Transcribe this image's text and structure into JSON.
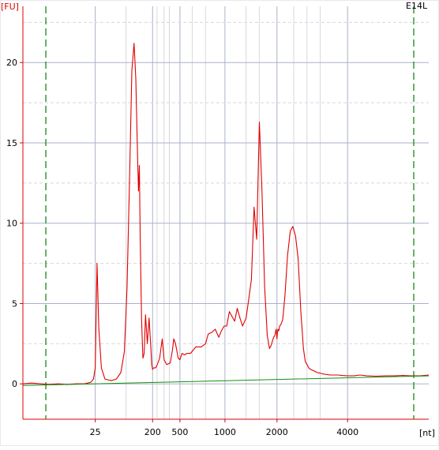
{
  "chart_data": {
    "type": "line",
    "sample_label": "E14L",
    "ylabel": "[FU]",
    "xlabel": "[nt]",
    "y_ticks": [
      0,
      5,
      10,
      15,
      20
    ],
    "x_tick_labels": [
      "25",
      "200",
      "500",
      "1000",
      "2000",
      "4000"
    ],
    "ylim": [
      -2.2,
      23.5
    ],
    "grid": true,
    "legend": "none",
    "x_tick_time_s": [
      25.2,
      31.7,
      34.8,
      39.9,
      45.8,
      53.8
    ],
    "x_minor_grid_time_s": [
      28.7,
      32.2,
      33.0,
      33.6,
      36.2,
      37.7,
      42.3,
      43.8,
      47.7,
      49.2,
      50.7
    ],
    "xlim_time_s": [
      17.0,
      63.0
    ],
    "marker_lines_time_s": [
      19.6,
      61.3
    ],
    "series": [
      {
        "role": "electropherogram",
        "x": [
          17.0,
          18.0,
          19.0,
          20.0,
          21.0,
          22.0,
          23.0,
          24.0,
          24.7,
          25.0,
          25.2,
          25.4,
          25.6,
          25.9,
          26.3,
          27.0,
          27.6,
          28.1,
          28.5,
          28.8,
          29.1,
          29.35,
          29.6,
          29.8,
          30.0,
          30.1,
          30.2,
          30.3,
          30.45,
          30.6,
          30.75,
          30.9,
          31.1,
          31.3,
          31.5,
          31.6,
          31.7,
          31.75,
          31.85,
          31.95,
          32.05,
          32.15,
          32.3,
          32.5,
          32.8,
          33.0,
          33.3,
          33.7,
          33.95,
          34.1,
          34.3,
          34.6,
          34.8,
          34.92,
          35.05,
          35.3,
          35.6,
          36.0,
          36.6,
          37.2,
          37.7,
          38.0,
          38.4,
          38.8,
          39.2,
          39.5,
          39.8,
          40.1,
          40.4,
          40.7,
          41.0,
          41.3,
          41.6,
          41.9,
          42.3,
          42.6,
          42.9,
          43.2,
          43.5,
          43.8,
          44.1,
          44.4,
          44.7,
          44.95,
          45.15,
          45.3,
          45.42,
          45.55,
          45.7,
          45.8,
          45.85,
          45.92,
          46.0,
          46.1,
          46.25,
          46.45,
          46.7,
          47.0,
          47.3,
          47.6,
          47.9,
          48.2,
          48.5,
          48.8,
          49.0,
          49.2,
          49.4,
          49.6,
          49.8,
          50.0,
          50.2,
          50.4,
          50.6,
          50.8,
          51.0,
          51.2,
          51.5,
          51.8,
          52.2,
          52.7,
          53.2,
          53.8,
          54.5,
          55.2,
          56.0,
          57.0,
          58.0,
          59.0,
          60.0,
          61.0,
          62.0,
          63.0
        ],
        "y": [
          0.0,
          0.05,
          0.0,
          -0.05,
          0.0,
          -0.05,
          0.0,
          0.0,
          0.1,
          0.3,
          1.0,
          7.5,
          3.5,
          1.0,
          0.3,
          0.2,
          0.3,
          0.7,
          2.0,
          6.0,
          13.0,
          19.5,
          21.2,
          19.0,
          14.0,
          12.0,
          13.6,
          9.0,
          4.0,
          1.6,
          1.9,
          4.3,
          2.5,
          4.1,
          2.3,
          1.2,
          0.9,
          0.95,
          1.0,
          1.0,
          1.0,
          1.1,
          1.3,
          1.6,
          2.8,
          1.5,
          1.2,
          1.3,
          2.1,
          2.8,
          2.5,
          1.6,
          1.5,
          1.7,
          1.9,
          1.8,
          1.9,
          1.9,
          2.3,
          2.3,
          2.5,
          3.1,
          3.2,
          3.4,
          2.9,
          3.3,
          3.6,
          3.6,
          4.5,
          4.2,
          3.9,
          4.7,
          4.1,
          3.6,
          4.1,
          5.3,
          6.5,
          11.0,
          9.0,
          16.3,
          12.0,
          6.0,
          3.0,
          2.2,
          2.4,
          2.7,
          2.9,
          3.0,
          3.4,
          2.8,
          3.2,
          3.4,
          3.3,
          3.6,
          3.7,
          4.0,
          5.5,
          8.0,
          9.5,
          9.8,
          9.2,
          7.8,
          4.5,
          2.2,
          1.4,
          1.2,
          1.0,
          0.9,
          0.85,
          0.8,
          0.75,
          0.7,
          0.68,
          0.65,
          0.62,
          0.6,
          0.58,
          0.55,
          0.55,
          0.55,
          0.52,
          0.5,
          0.5,
          0.55,
          0.5,
          0.48,
          0.5,
          0.5,
          0.52,
          0.5,
          0.5,
          0.55
        ]
      },
      {
        "role": "baseline",
        "x": [
          17.0,
          25.0,
          40.0,
          63.0
        ],
        "y": [
          -0.1,
          0.0,
          0.2,
          0.5
        ]
      }
    ]
  },
  "colors": {
    "background": "#ffffff",
    "panel_border": "#e8e8e8",
    "major_grid": "#aab2c8",
    "minor_grid": "#d8d8e0",
    "axis": "#e00000",
    "axis_text": "#000000",
    "label_text": "#e00000",
    "trace": "#e00000",
    "baseline": "#109010",
    "marker_line": "#008000"
  }
}
